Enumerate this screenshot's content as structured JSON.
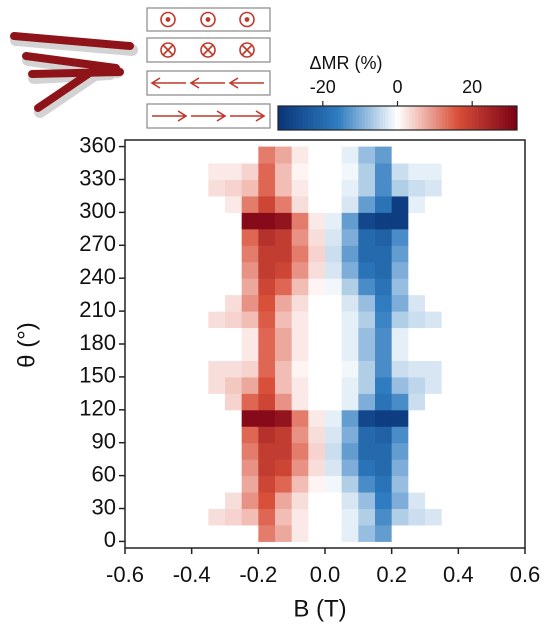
{
  "chart_data": {
    "type": "heatmap",
    "xlabel": "B (T)",
    "ylabel": "θ (°)",
    "colorbar_label": "ΔMR (%)",
    "x_bins": [
      -0.6,
      -0.55,
      -0.5,
      -0.45,
      -0.4,
      -0.35,
      -0.3,
      -0.25,
      -0.2,
      -0.15,
      -0.1,
      -0.05,
      0,
      0.05,
      0.1,
      0.15,
      0.2,
      0.25,
      0.3,
      0.35,
      0.4,
      0.45,
      0.5,
      0.55,
      0.6
    ],
    "y_bins": [
      0,
      15,
      30,
      45,
      60,
      75,
      90,
      105,
      120,
      135,
      150,
      165,
      180,
      195,
      210,
      225,
      240,
      255,
      270,
      285,
      300,
      315,
      330,
      345,
      360
    ],
    "values": [
      [
        0,
        0,
        0,
        0,
        0,
        0,
        0,
        0,
        12,
        8,
        2,
        0,
        0,
        -2,
        -8,
        -12,
        0,
        0,
        0,
        0,
        0,
        0,
        0,
        0
      ],
      [
        0,
        0,
        0,
        0,
        0,
        3,
        4,
        6,
        14,
        6,
        2,
        0,
        0,
        -2,
        -6,
        -14,
        -6,
        -4,
        -3,
        0,
        0,
        0,
        0,
        0
      ],
      [
        0,
        0,
        0,
        0,
        0,
        0,
        3,
        10,
        16,
        8,
        3,
        0,
        0,
        -3,
        -8,
        -16,
        -10,
        -3,
        0,
        0,
        0,
        0,
        0,
        0
      ],
      [
        0,
        0,
        0,
        0,
        0,
        0,
        0,
        8,
        18,
        14,
        6,
        1,
        -1,
        -6,
        -14,
        -18,
        -8,
        0,
        0,
        0,
        0,
        0,
        0,
        0
      ],
      [
        0,
        0,
        0,
        0,
        0,
        0,
        0,
        10,
        20,
        18,
        10,
        3,
        -3,
        -10,
        -18,
        -20,
        -10,
        0,
        0,
        0,
        0,
        0,
        0,
        0
      ],
      [
        0,
        0,
        0,
        0,
        0,
        0,
        0,
        12,
        20,
        20,
        12,
        4,
        -4,
        -12,
        -20,
        -20,
        -12,
        0,
        0,
        0,
        0,
        0,
        0,
        0
      ],
      [
        0,
        0,
        0,
        0,
        0,
        0,
        0,
        14,
        22,
        20,
        10,
        3,
        -3,
        -10,
        -20,
        -22,
        -14,
        0,
        0,
        0,
        0,
        0,
        0,
        0
      ],
      [
        0,
        0,
        0,
        0,
        0,
        0,
        0,
        30,
        30,
        28,
        12,
        2,
        -2,
        -12,
        -28,
        -30,
        -30,
        0,
        0,
        0,
        0,
        0,
        0,
        0
      ],
      [
        0,
        0,
        0,
        0,
        0,
        0,
        4,
        14,
        18,
        10,
        2,
        0,
        0,
        -2,
        -10,
        -18,
        -14,
        -4,
        0,
        0,
        0,
        0,
        0,
        0
      ],
      [
        0,
        0,
        0,
        0,
        0,
        3,
        5,
        8,
        16,
        6,
        2,
        0,
        0,
        -2,
        -6,
        -16,
        -8,
        -5,
        -3,
        0,
        0,
        0,
        0,
        0
      ],
      [
        0,
        0,
        0,
        0,
        0,
        3,
        3,
        4,
        14,
        6,
        1,
        0,
        0,
        -1,
        -6,
        -14,
        -4,
        -3,
        -3,
        0,
        0,
        0,
        0,
        0
      ],
      [
        0,
        0,
        0,
        0,
        0,
        0,
        0,
        2,
        14,
        8,
        2,
        0,
        0,
        -2,
        -8,
        -14,
        -2,
        0,
        0,
        0,
        0,
        0,
        0,
        0
      ],
      [
        0,
        0,
        0,
        0,
        0,
        0,
        0,
        2,
        14,
        8,
        2,
        0,
        0,
        -2,
        -8,
        -14,
        -2,
        0,
        0,
        0,
        0,
        0,
        0,
        0
      ],
      [
        0,
        0,
        0,
        0,
        0,
        3,
        4,
        6,
        15,
        6,
        2,
        0,
        0,
        -2,
        -6,
        -15,
        -6,
        -4,
        -3,
        0,
        0,
        0,
        0,
        0
      ],
      [
        0,
        0,
        0,
        0,
        0,
        0,
        3,
        10,
        16,
        8,
        3,
        0,
        0,
        -3,
        -8,
        -16,
        -10,
        -3,
        0,
        0,
        0,
        0,
        0,
        0
      ],
      [
        0,
        0,
        0,
        0,
        0,
        0,
        0,
        8,
        18,
        14,
        6,
        1,
        -1,
        -6,
        -14,
        -18,
        -8,
        0,
        0,
        0,
        0,
        0,
        0,
        0
      ],
      [
        0,
        0,
        0,
        0,
        0,
        0,
        0,
        10,
        20,
        18,
        10,
        3,
        -3,
        -10,
        -18,
        -20,
        -10,
        0,
        0,
        0,
        0,
        0,
        0,
        0
      ],
      [
        0,
        0,
        0,
        0,
        0,
        0,
        0,
        12,
        20,
        20,
        12,
        4,
        -4,
        -12,
        -20,
        -20,
        -12,
        0,
        0,
        0,
        0,
        0,
        0,
        0
      ],
      [
        0,
        0,
        0,
        0,
        0,
        0,
        0,
        14,
        22,
        20,
        10,
        3,
        -3,
        -10,
        -20,
        -22,
        -14,
        0,
        0,
        0,
        0,
        0,
        0,
        0
      ],
      [
        0,
        0,
        0,
        0,
        0,
        0,
        0,
        30,
        30,
        28,
        12,
        2,
        -2,
        -12,
        -28,
        -30,
        -30,
        0,
        0,
        0,
        0,
        0,
        0,
        0
      ],
      [
        0,
        0,
        0,
        0,
        0,
        0,
        2,
        12,
        18,
        12,
        3,
        0,
        0,
        -3,
        -12,
        -18,
        -30,
        -2,
        0,
        0,
        0,
        0,
        0,
        0
      ],
      [
        0,
        0,
        0,
        0,
        0,
        3,
        4,
        6,
        14,
        6,
        2,
        0,
        0,
        -2,
        -6,
        -14,
        -6,
        -4,
        -3,
        0,
        0,
        0,
        0,
        0
      ],
      [
        0,
        0,
        0,
        0,
        0,
        2,
        2,
        4,
        14,
        6,
        1,
        0,
        0,
        -1,
        -6,
        -14,
        -4,
        -2,
        -2,
        0,
        0,
        0,
        0,
        0
      ],
      [
        0,
        0,
        0,
        0,
        0,
        0,
        0,
        0,
        12,
        8,
        2,
        0,
        0,
        -2,
        -8,
        -12,
        0,
        0,
        0,
        0,
        0,
        0,
        0,
        0
      ]
    ],
    "xlim": [
      -0.6,
      0.6
    ],
    "ylim": [
      -6,
      366
    ],
    "xticks": [
      -0.6,
      -0.4,
      -0.2,
      {
        "value": 0,
        "label": "0.0"
      },
      0.2,
      0.4,
      0.6
    ],
    "yticks": [
      0,
      30,
      60,
      90,
      120,
      150,
      180,
      210,
      240,
      270,
      300,
      330,
      360
    ],
    "zlim": [
      -32,
      32
    ],
    "zticks": [
      -20,
      0,
      20
    ],
    "colormap": [
      "#0a3478",
      "#2f7cc0",
      "#ffffff",
      "#d9503a",
      "#7a0014"
    ]
  }
}
